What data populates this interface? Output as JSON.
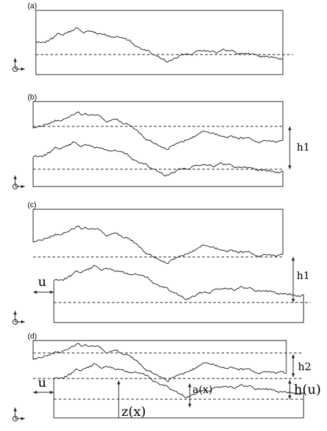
{
  "panels": [
    {
      "label": "(a)"
    },
    {
      "label": "(b)",
      "annotations": [
        "h1"
      ]
    },
    {
      "label": "(c)",
      "annotations": [
        "h1",
        "u"
      ]
    },
    {
      "label": "(d)",
      "annotations": [
        "h2",
        "h(u)",
        "a(x)",
        "u",
        "z(x)"
      ]
    }
  ]
}
